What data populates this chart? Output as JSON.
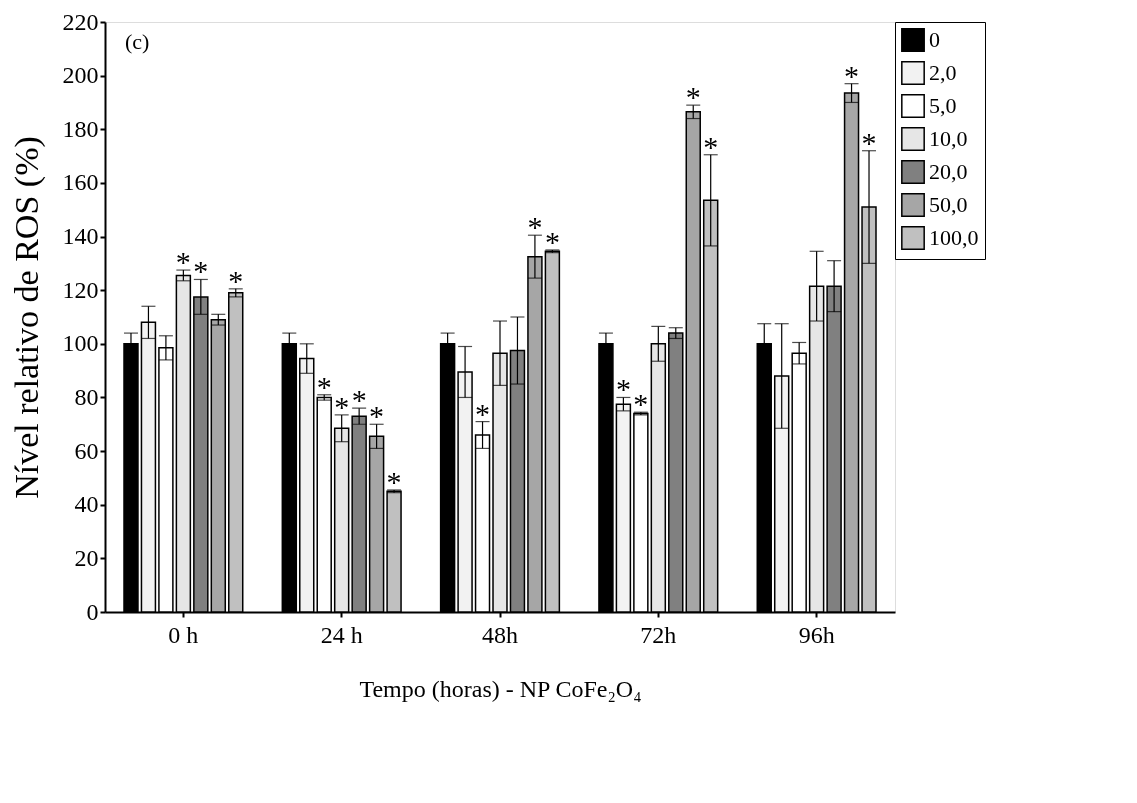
{
  "chart_data": {
    "type": "bar",
    "xlabel": "Tempo (horas) - NP CoFe₂O₄",
    "ylabel": "Nível relativo de ROS (%)",
    "annotations": [
      "(c)"
    ],
    "categories": [
      "0 h",
      "24 h",
      "48h",
      "72h",
      "96h"
    ],
    "ylim": [
      0,
      220
    ],
    "yticks": [
      0,
      20,
      40,
      60,
      80,
      100,
      120,
      140,
      160,
      180,
      200,
      220
    ],
    "grid": false,
    "legend": "top right",
    "series": [
      {
        "name": "0",
        "color": "#000000",
        "values": [
          100,
          100,
          100,
          100,
          100
        ],
        "errors": [
          4,
          4,
          4,
          4,
          7.5
        ],
        "value_labels": [
          null,
          null,
          null,
          null,
          null
        ]
      },
      {
        "name": "2,0",
        "color": "#f2f2f2",
        "values": [
          108,
          94.5,
          89.5,
          77.5,
          88
        ],
        "errors": [
          6,
          5.5,
          9.5,
          2.5,
          19.5
        ],
        "value_labels": [
          null,
          null,
          null,
          "*",
          null
        ]
      },
      {
        "name": "5,0",
        "color": "#ffffff",
        "values": [
          98.5,
          80,
          66,
          74,
          96.5
        ],
        "errors": [
          4.5,
          1,
          5,
          0.5,
          4
        ],
        "value_labels": [
          null,
          "*",
          "*",
          "*",
          null
        ]
      },
      {
        "name": "10,0",
        "color": "#e6e6e6",
        "values": [
          125.5,
          68.5,
          96.5,
          100,
          121.5
        ],
        "errors": [
          2,
          5,
          12,
          6.5,
          13
        ],
        "value_labels": [
          "*",
          "*",
          null,
          null,
          null
        ]
      },
      {
        "name": "20,0",
        "color": "#808080",
        "values": [
          117.5,
          73,
          97.5,
          104,
          121.5
        ],
        "errors": [
          6.5,
          3,
          12.5,
          2,
          9.5
        ],
        "value_labels": [
          "*",
          "*",
          null,
          null,
          null
        ]
      },
      {
        "name": "50,0",
        "color": "#a6a6a6",
        "values": [
          109,
          65.5,
          132.5,
          186.5,
          193.5
        ],
        "errors": [
          2,
          4.5,
          8,
          2.5,
          3.5
        ],
        "value_labels": [
          null,
          "*",
          "*",
          "*",
          "*"
        ]
      },
      {
        "name": "100,0",
        "color": "#c0c0c0",
        "values": [
          119,
          45,
          134.5,
          153.5,
          151
        ],
        "errors": [
          1.5,
          0.5,
          0.5,
          17,
          21
        ],
        "value_labels": [
          "*",
          "*",
          "*",
          "*",
          "*"
        ]
      }
    ]
  }
}
